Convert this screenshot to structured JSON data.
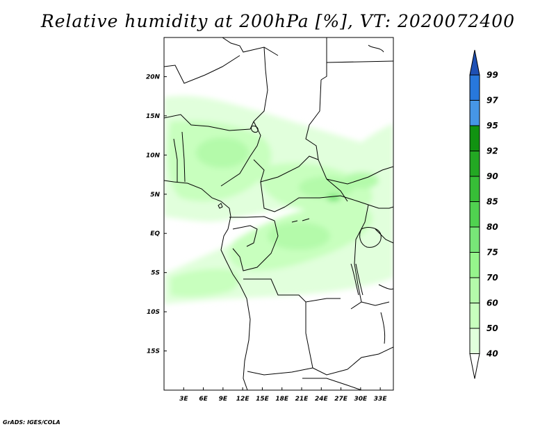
{
  "title": "Relative humidity at 200hPa [%], VT: 2020072400",
  "credit": "GrADS: IGES/COLA",
  "map": {
    "lat_ticks": [
      {
        "label": "20N",
        "value": 20
      },
      {
        "label": "15N",
        "value": 15
      },
      {
        "label": "10N",
        "value": 10
      },
      {
        "label": "5N",
        "value": 5
      },
      {
        "label": "EQ",
        "value": 0
      },
      {
        "label": "5S",
        "value": -5
      },
      {
        "label": "10S",
        "value": -10
      },
      {
        "label": "15S",
        "value": -15
      }
    ],
    "lon_ticks": [
      {
        "label": "3E",
        "value": 3
      },
      {
        "label": "6E",
        "value": 6
      },
      {
        "label": "9E",
        "value": 9
      },
      {
        "label": "12E",
        "value": 12
      },
      {
        "label": "15E",
        "value": 15
      },
      {
        "label": "18E",
        "value": 18
      },
      {
        "label": "21E",
        "value": 21
      },
      {
        "label": "24E",
        "value": 24
      },
      {
        "label": "27E",
        "value": 27
      },
      {
        "label": "30E",
        "value": 30
      },
      {
        "label": "33E",
        "value": 33
      }
    ],
    "lon_range": [
      0,
      35
    ],
    "lat_range": [
      -20,
      25
    ]
  },
  "colorbar": {
    "levels": [
      {
        "label": "99",
        "value": 99,
        "color": "#1e64c8"
      },
      {
        "label": "97",
        "value": 97,
        "color": "#2878dc"
      },
      {
        "label": "95",
        "value": 95,
        "color": "#4696e6"
      },
      {
        "label": "92",
        "value": 92,
        "color": "#119211"
      },
      {
        "label": "90",
        "value": 90,
        "color": "#23a823"
      },
      {
        "label": "85",
        "value": 85,
        "color": "#37be37"
      },
      {
        "label": "80",
        "value": 80,
        "color": "#50d250"
      },
      {
        "label": "75",
        "value": 75,
        "color": "#78e678"
      },
      {
        "label": "70",
        "value": 70,
        "color": "#96f58c"
      },
      {
        "label": "60",
        "value": 60,
        "color": "#b4faaa"
      },
      {
        "label": "50",
        "value": 50,
        "color": "#c8ffbe"
      },
      {
        "label": "40",
        "value": 40,
        "color": "#e1ffdc"
      }
    ],
    "top_arrow_color": "#1e50b4",
    "bottom_arrow_color": "#ffffff"
  }
}
